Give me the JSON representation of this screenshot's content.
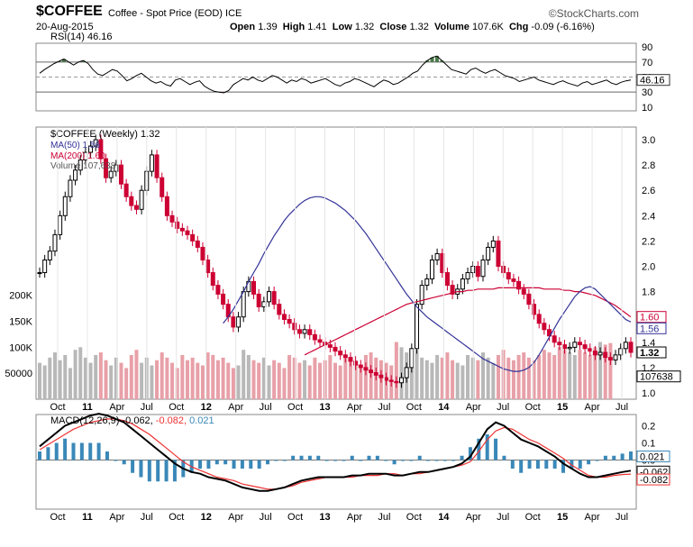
{
  "header": {
    "symbol": "$COFFEE",
    "description": "Coffee - Spot Price (EOD)",
    "exchange": "ICE",
    "watermark": "©StockCharts.com",
    "date": "20-Aug-2015",
    "open_label": "Open",
    "open_value": "1.39",
    "high_label": "High",
    "high_value": "1.41",
    "low_label": "Low",
    "low_value": "1.32",
    "close_label": "Close",
    "close_value": "1.32",
    "volume_label": "Volume",
    "volume_value": "107.6K",
    "chg_label": "Chg",
    "chg_value": "-0.09 (-6.16%)"
  },
  "colors": {
    "up": "#000000",
    "down": "#cc0033",
    "ma50": "#333399",
    "ma200": "#cc0033",
    "rsi_ob": "#4a7a4a",
    "rsi_os": "#b04040",
    "macd_sig": "#ee3333",
    "hist": "#3a88b8"
  },
  "chart_data": [
    {
      "type": "line",
      "panel": "RSI",
      "legend": "RSI(14) 46.16",
      "current_label": "46.16",
      "ylim": [
        0,
        100
      ],
      "y_ticks": [
        "90",
        "70",
        "50",
        "30",
        "10"
      ],
      "ref_lines": [
        70,
        30
      ],
      "values": [
        55,
        60,
        64,
        68,
        71,
        74,
        70,
        66,
        70,
        72,
        68,
        60,
        54,
        52,
        56,
        60,
        58,
        52,
        45,
        48,
        52,
        55,
        50,
        45,
        42,
        44,
        40,
        38,
        46,
        48,
        44,
        40,
        43,
        45,
        38,
        34,
        31,
        30,
        29,
        32,
        40,
        44,
        48,
        46,
        50,
        46,
        44,
        48,
        52,
        50,
        46,
        42,
        46,
        44,
        48,
        46,
        42,
        44,
        46,
        48,
        44,
        40,
        38,
        42,
        44,
        48,
        46,
        43,
        40,
        37,
        42,
        46,
        44,
        40,
        42,
        46,
        50,
        55,
        58,
        66,
        72,
        76,
        78,
        72,
        66,
        60,
        58,
        56,
        54,
        60,
        62,
        58,
        55,
        58,
        60,
        56,
        52,
        50,
        48,
        44,
        46,
        48,
        50,
        46,
        44,
        42,
        40,
        43,
        45,
        42,
        40,
        38,
        42,
        44,
        40,
        42,
        44,
        46,
        42,
        40,
        43,
        45,
        46
      ]
    },
    {
      "type": "candlestick",
      "panel": "Price",
      "legend": [
        "$COFFEE (Weekly) 1.32",
        "MA(50) 1.56",
        "MA(200) 1.60",
        "Volume 107,638"
      ],
      "ylim": [
        0.95,
        3.1
      ],
      "y_ticks": [
        "3.0",
        "2.8",
        "2.6",
        "2.4",
        "2.2",
        "2.0",
        "1.8",
        "1.6",
        "1.4",
        "1.2",
        "1.0"
      ],
      "volume_ticks": [
        "200K",
        "150K",
        "100K",
        "50000"
      ],
      "last_close_label": "1.32",
      "ma50_label": "1.56",
      "ma200_label": "1.60",
      "volume_label": "107638",
      "x_labels": [
        "Oct",
        "11",
        "Apr",
        "Jul",
        "Oct",
        "12",
        "Apr",
        "Jul",
        "Oct",
        "13",
        "Apr",
        "Jul",
        "Oct",
        "14",
        "Apr",
        "Jul",
        "Oct",
        "15",
        "Apr",
        "Jul"
      ],
      "close": [
        1.95,
        2.05,
        2.12,
        2.25,
        2.4,
        2.55,
        2.68,
        2.76,
        2.84,
        2.9,
        2.95,
        3.0,
        2.85,
        2.7,
        2.75,
        2.8,
        2.65,
        2.55,
        2.48,
        2.45,
        2.6,
        2.75,
        2.88,
        2.7,
        2.55,
        2.4,
        2.35,
        2.3,
        2.28,
        2.25,
        2.2,
        2.15,
        2.05,
        1.95,
        1.85,
        1.78,
        1.7,
        1.6,
        1.52,
        1.6,
        1.8,
        1.88,
        1.78,
        1.68,
        1.72,
        1.8,
        1.7,
        1.62,
        1.58,
        1.55,
        1.5,
        1.47,
        1.5,
        1.46,
        1.42,
        1.4,
        1.38,
        1.36,
        1.33,
        1.3,
        1.28,
        1.25,
        1.22,
        1.2,
        1.18,
        1.16,
        1.14,
        1.12,
        1.1,
        1.09,
        1.08,
        1.12,
        1.2,
        1.35,
        1.7,
        1.85,
        1.9,
        2.05,
        2.1,
        1.95,
        1.85,
        1.78,
        1.82,
        1.9,
        1.95,
        2.0,
        1.92,
        2.05,
        2.15,
        2.2,
        2.0,
        1.95,
        1.9,
        1.88,
        1.82,
        1.78,
        1.7,
        1.62,
        1.55,
        1.5,
        1.45,
        1.4,
        1.38,
        1.35,
        1.36,
        1.4,
        1.38,
        1.35,
        1.33,
        1.3,
        1.32,
        1.28,
        1.26,
        1.3,
        1.35,
        1.4,
        1.32
      ],
      "ma50": [
        1.55,
        1.6,
        1.66,
        1.73,
        1.8,
        1.88,
        1.95,
        2.02,
        2.1,
        2.17,
        2.24,
        2.3,
        2.36,
        2.41,
        2.45,
        2.49,
        2.52,
        2.54,
        2.55,
        2.55,
        2.54,
        2.52,
        2.5,
        2.47,
        2.44,
        2.4,
        2.36,
        2.31,
        2.26,
        2.2,
        2.14,
        2.08,
        2.02,
        1.96,
        1.9,
        1.84,
        1.78,
        1.73,
        1.68,
        1.64,
        1.6,
        1.57,
        1.54,
        1.51,
        1.48,
        1.45,
        1.42,
        1.39,
        1.36,
        1.33,
        1.3,
        1.27,
        1.25,
        1.23,
        1.21,
        1.19,
        1.18,
        1.17,
        1.17,
        1.18,
        1.2,
        1.24,
        1.3,
        1.37,
        1.44,
        1.51,
        1.58,
        1.64,
        1.7,
        1.76,
        1.8,
        1.83,
        1.84,
        1.82,
        1.78,
        1.74,
        1.7,
        1.66,
        1.62,
        1.58,
        1.56
      ],
      "ma50_start_index": 36,
      "ma200": [
        1.3,
        1.32,
        1.34,
        1.36,
        1.38,
        1.4,
        1.42,
        1.44,
        1.46,
        1.48,
        1.5,
        1.52,
        1.54,
        1.56,
        1.58,
        1.6,
        1.62,
        1.64,
        1.66,
        1.68,
        1.7,
        1.71,
        1.72,
        1.73,
        1.74,
        1.75,
        1.76,
        1.77,
        1.78,
        1.79,
        1.8,
        1.8,
        1.81,
        1.81,
        1.82,
        1.82,
        1.82,
        1.82,
        1.83,
        1.83,
        1.83,
        1.83,
        1.83,
        1.83,
        1.83,
        1.83,
        1.83,
        1.82,
        1.82,
        1.82,
        1.82,
        1.81,
        1.81,
        1.8,
        1.8,
        1.79,
        1.78,
        1.77,
        1.75,
        1.73,
        1.71,
        1.69,
        1.66,
        1.63,
        1.6
      ],
      "ma200_start_index": 52,
      "volume_k": [
        70,
        65,
        80,
        90,
        75,
        85,
        60,
        95,
        100,
        80,
        70,
        85,
        90,
        75,
        65,
        80,
        70,
        60,
        85,
        95,
        70,
        80,
        65,
        75,
        90,
        80,
        70,
        60,
        85,
        75,
        80,
        70,
        65,
        90,
        85,
        75,
        80,
        70,
        60,
        65,
        95,
        85,
        75,
        70,
        80,
        65,
        75,
        70,
        60,
        85,
        80,
        70,
        75,
        65,
        80,
        70,
        75,
        85,
        70,
        65,
        80,
        75,
        70,
        60,
        85,
        90,
        80,
        75,
        70,
        65,
        110,
        100,
        90,
        85,
        95,
        80,
        75,
        70,
        85,
        80,
        90,
        75,
        70,
        65,
        85,
        80,
        75,
        90,
        80,
        70,
        85,
        95,
        80,
        75,
        85,
        90,
        80,
        75,
        85,
        95,
        90,
        85,
        100,
        95,
        90,
        85,
        95,
        90,
        85,
        100,
        110,
        105,
        108
      ]
    },
    {
      "type": "line",
      "panel": "MACD",
      "legend_label": "MACD(12,26,9)",
      "legend_macd": "-0.062",
      "legend_signal": "-0.082",
      "legend_hist": "0.021",
      "y_ticks": [
        "0.2",
        "0.1",
        "0.0"
      ],
      "current_labels": [
        "0.021",
        "-0.062",
        "-0.082"
      ],
      "x_labels": [
        "Oct",
        "11",
        "Apr",
        "Jul",
        "Oct",
        "12",
        "Apr",
        "Jul",
        "Oct",
        "13",
        "Apr",
        "Jul",
        "Oct",
        "14",
        "Apr",
        "Jul",
        "Oct",
        "15",
        "Apr",
        "Jul"
      ],
      "macd": [
        0.08,
        0.12,
        0.16,
        0.2,
        0.22,
        0.24,
        0.26,
        0.27,
        0.26,
        0.24,
        0.22,
        0.18,
        0.14,
        0.1,
        0.06,
        0.02,
        -0.02,
        -0.05,
        -0.07,
        -0.08,
        -0.1,
        -0.11,
        -0.12,
        -0.14,
        -0.16,
        -0.17,
        -0.18,
        -0.18,
        -0.17,
        -0.16,
        -0.14,
        -0.12,
        -0.11,
        -0.1,
        -0.1,
        -0.1,
        -0.1,
        -0.09,
        -0.09,
        -0.08,
        -0.08,
        -0.08,
        -0.09,
        -0.09,
        -0.08,
        -0.07,
        -0.07,
        -0.06,
        -0.05,
        -0.04,
        -0.02,
        0.02,
        0.1,
        0.18,
        0.22,
        0.2,
        0.16,
        0.12,
        0.1,
        0.08,
        0.05,
        0.02,
        -0.02,
        -0.05,
        -0.08,
        -0.1,
        -0.1,
        -0.09,
        -0.08,
        -0.07,
        -0.062
      ],
      "signal": [
        0.06,
        0.09,
        0.12,
        0.15,
        0.18,
        0.2,
        0.22,
        0.23,
        0.24,
        0.24,
        0.23,
        0.21,
        0.18,
        0.15,
        0.11,
        0.07,
        0.03,
        -0.01,
        -0.04,
        -0.06,
        -0.08,
        -0.1,
        -0.11,
        -0.12,
        -0.14,
        -0.15,
        -0.16,
        -0.17,
        -0.17,
        -0.16,
        -0.15,
        -0.13,
        -0.12,
        -0.11,
        -0.1,
        -0.1,
        -0.1,
        -0.1,
        -0.09,
        -0.09,
        -0.09,
        -0.08,
        -0.08,
        -0.09,
        -0.08,
        -0.08,
        -0.07,
        -0.06,
        -0.05,
        -0.04,
        -0.03,
        -0.01,
        0.05,
        0.12,
        0.17,
        0.19,
        0.18,
        0.15,
        0.12,
        0.1,
        0.07,
        0.04,
        0.01,
        -0.03,
        -0.06,
        -0.09,
        -0.1,
        -0.1,
        -0.09,
        -0.085,
        -0.082
      ]
    }
  ]
}
